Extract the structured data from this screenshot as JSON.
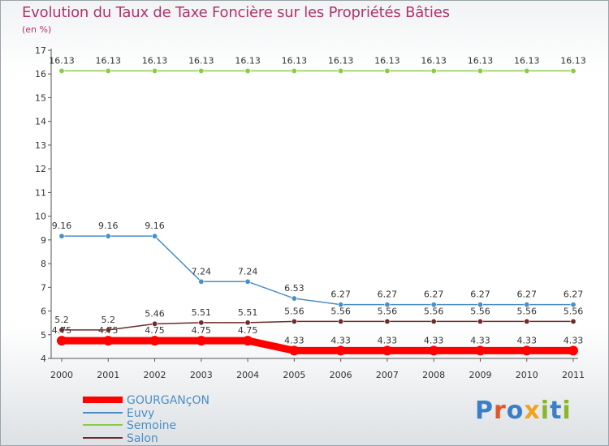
{
  "title": "Evolution du Taux de Taxe Foncière sur les Propriétés Bâties",
  "subtitle": "(en %)",
  "logo": {
    "text": "Proxiti",
    "colors": [
      "#3a7fc6",
      "#e2562b",
      "#3a7fc6",
      "#f0a21c",
      "#8ab62a",
      "#3a7fc6",
      "#8ab62a"
    ]
  },
  "chart_data": {
    "type": "line",
    "title": "Evolution du Taux de Taxe Foncière sur les Propriétés Bâties",
    "ylabel": "(en %)",
    "xlabel": "",
    "x": [
      "2000",
      "2001",
      "2002",
      "2003",
      "2004",
      "2005",
      "2006",
      "2007",
      "2008",
      "2009",
      "2010",
      "2011"
    ],
    "ylim": [
      4,
      17
    ],
    "yticks": [
      4,
      5,
      6,
      7,
      8,
      9,
      10,
      11,
      12,
      13,
      14,
      15,
      16,
      17
    ],
    "grid": false,
    "legend_position": "bottom-left",
    "series": [
      {
        "name": "GOURGANçON",
        "color": "#ff0000",
        "width": 9,
        "values": [
          4.75,
          4.75,
          4.75,
          4.75,
          4.75,
          4.33,
          4.33,
          4.33,
          4.33,
          4.33,
          4.33,
          4.33
        ],
        "labels": [
          "4.75",
          "4.75",
          "4.75",
          "4.75",
          "4.75",
          "4.33",
          "4.33",
          "4.33",
          "4.33",
          "4.33",
          "4.33",
          "4.33"
        ]
      },
      {
        "name": "Euvy",
        "color": "#4a8fc7",
        "width": 1.5,
        "values": [
          9.16,
          9.16,
          9.16,
          7.24,
          7.24,
          6.53,
          6.27,
          6.27,
          6.27,
          6.27,
          6.27,
          6.27
        ],
        "labels": [
          "9.16",
          "9.16",
          "9.16",
          "7.24",
          "7.24",
          "6.53",
          "6.27",
          "6.27",
          "6.27",
          "6.27",
          "6.27",
          "6.27"
        ]
      },
      {
        "name": "Semoine",
        "color": "#88cc44",
        "width": 1.5,
        "values": [
          16.13,
          16.13,
          16.13,
          16.13,
          16.13,
          16.13,
          16.13,
          16.13,
          16.13,
          16.13,
          16.13,
          16.13
        ],
        "labels": [
          "16.13",
          "16.13",
          "16.13",
          "16.13",
          "16.13",
          "16.13",
          "16.13",
          "16.13",
          "16.13",
          "16.13",
          "16.13",
          "16.13"
        ]
      },
      {
        "name": "Salon",
        "color": "#6e2b2b",
        "width": 1.5,
        "values": [
          5.2,
          5.2,
          5.46,
          5.51,
          5.51,
          5.56,
          5.56,
          5.56,
          5.56,
          5.56,
          5.56,
          5.56
        ],
        "labels": [
          "5.2",
          "5.2",
          "5.46",
          "5.51",
          "5.51",
          "5.56",
          "5.56",
          "5.56",
          "5.56",
          "5.56",
          "5.56",
          "5.56"
        ]
      }
    ]
  }
}
